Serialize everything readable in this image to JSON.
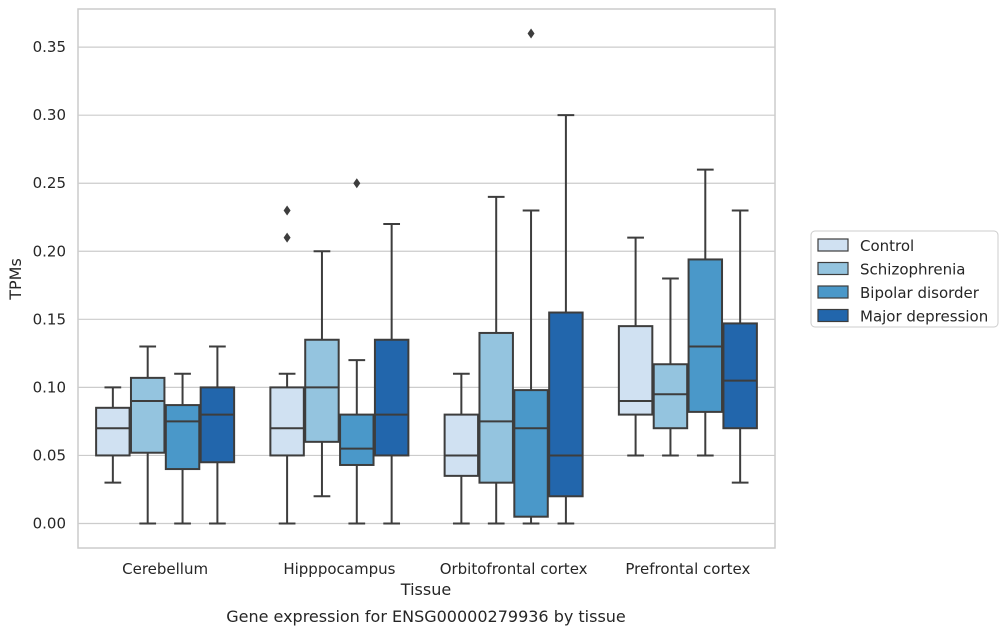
{
  "chart_data": {
    "type": "box",
    "title": "",
    "caption": "Gene expression for ENSG00000279936 by tissue",
    "xlabel": "Tissue",
    "ylabel": "TPMs",
    "ylim": [
      -0.018,
      0.378
    ],
    "yticks": [
      "0.00",
      "0.05",
      "0.10",
      "0.15",
      "0.20",
      "0.25",
      "0.30",
      "0.35"
    ],
    "grid": true,
    "legend_position": "right",
    "categories": [
      "Cerebellum",
      "Hipppocampus",
      "Orbitofrontal cortex",
      "Prefrontal cortex"
    ],
    "series": [
      {
        "name": "Control",
        "color": "#d0e1f2",
        "boxes": [
          {
            "whislo": 0.03,
            "q1": 0.05,
            "med": 0.07,
            "q3": 0.085,
            "whishi": 0.1,
            "fliers": []
          },
          {
            "whislo": 0.0,
            "q1": 0.05,
            "med": 0.07,
            "q3": 0.1,
            "whishi": 0.11,
            "fliers": [
              0.21,
              0.23
            ]
          },
          {
            "whislo": 0.0,
            "q1": 0.035,
            "med": 0.05,
            "q3": 0.08,
            "whishi": 0.11,
            "fliers": []
          },
          {
            "whislo": 0.05,
            "q1": 0.08,
            "med": 0.09,
            "q3": 0.145,
            "whishi": 0.21,
            "fliers": []
          }
        ]
      },
      {
        "name": "Schizophrenia",
        "color": "#94c4df",
        "boxes": [
          {
            "whislo": 0.0,
            "q1": 0.052,
            "med": 0.09,
            "q3": 0.107,
            "whishi": 0.13,
            "fliers": []
          },
          {
            "whislo": 0.02,
            "q1": 0.06,
            "med": 0.1,
            "q3": 0.135,
            "whishi": 0.2,
            "fliers": []
          },
          {
            "whislo": 0.0,
            "q1": 0.03,
            "med": 0.075,
            "q3": 0.14,
            "whishi": 0.24,
            "fliers": []
          },
          {
            "whislo": 0.05,
            "q1": 0.07,
            "med": 0.095,
            "q3": 0.117,
            "whishi": 0.18,
            "fliers": []
          }
        ]
      },
      {
        "name": "Bipolar disorder",
        "color": "#4a98c9",
        "boxes": [
          {
            "whislo": 0.0,
            "q1": 0.04,
            "med": 0.075,
            "q3": 0.087,
            "whishi": 0.11,
            "fliers": []
          },
          {
            "whislo": 0.0,
            "q1": 0.043,
            "med": 0.055,
            "q3": 0.08,
            "whishi": 0.12,
            "fliers": [
              0.25
            ]
          },
          {
            "whislo": 0.0,
            "q1": 0.005,
            "med": 0.07,
            "q3": 0.098,
            "whishi": 0.23,
            "fliers": [
              0.36
            ]
          },
          {
            "whislo": 0.05,
            "q1": 0.082,
            "med": 0.13,
            "q3": 0.194,
            "whishi": 0.26,
            "fliers": []
          }
        ]
      },
      {
        "name": "Major depression",
        "color": "#2266ac",
        "boxes": [
          {
            "whislo": 0.0,
            "q1": 0.045,
            "med": 0.08,
            "q3": 0.1,
            "whishi": 0.13,
            "fliers": []
          },
          {
            "whislo": 0.0,
            "q1": 0.05,
            "med": 0.08,
            "q3": 0.135,
            "whishi": 0.22,
            "fliers": []
          },
          {
            "whislo": 0.0,
            "q1": 0.02,
            "med": 0.05,
            "q3": 0.155,
            "whishi": 0.3,
            "fliers": []
          },
          {
            "whislo": 0.03,
            "q1": 0.07,
            "med": 0.105,
            "q3": 0.147,
            "whishi": 0.23,
            "fliers": []
          }
        ]
      }
    ]
  }
}
